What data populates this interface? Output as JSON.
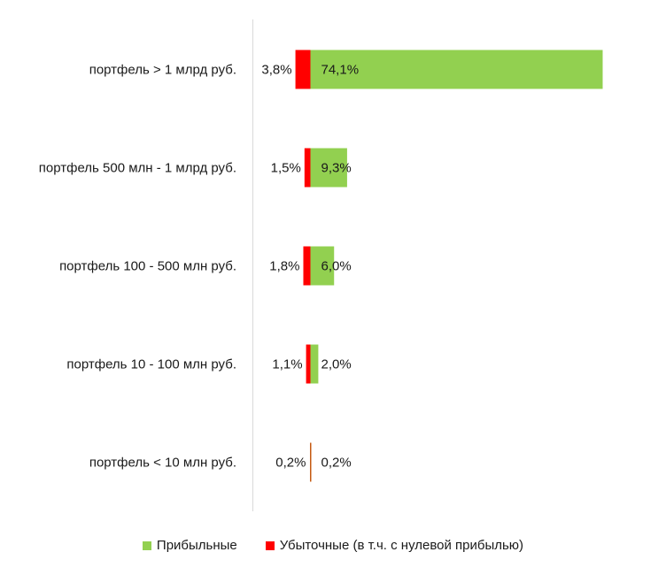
{
  "chart_data": {
    "type": "bar",
    "orientation": "horizontal",
    "stacking": "diverging",
    "categories": [
      "портфель > 1 млрд руб.",
      "портфель 500 млн - 1 млрд руб.",
      "портфель 100 - 500 млн руб.",
      "портфель 10 - 100 млн руб.",
      "портфель < 10 млн руб."
    ],
    "series": [
      {
        "name": "Прибыльные",
        "color": "#92d050",
        "values": [
          74.1,
          9.3,
          6.0,
          2.0,
          0.2
        ],
        "labels": [
          "74,1%",
          "9,3%",
          "6,0%",
          "2,0%",
          "0,2%"
        ]
      },
      {
        "name": "Убыточные (в т.ч. с нулевой прибылью)",
        "color": "#ff0000",
        "values": [
          3.8,
          1.5,
          1.8,
          1.1,
          0.2
        ],
        "labels": [
          "3,8%",
          "1,5%",
          "1,8%",
          "1,1%",
          "0,2%"
        ]
      }
    ],
    "legend_position": "bottom",
    "grid": false
  }
}
